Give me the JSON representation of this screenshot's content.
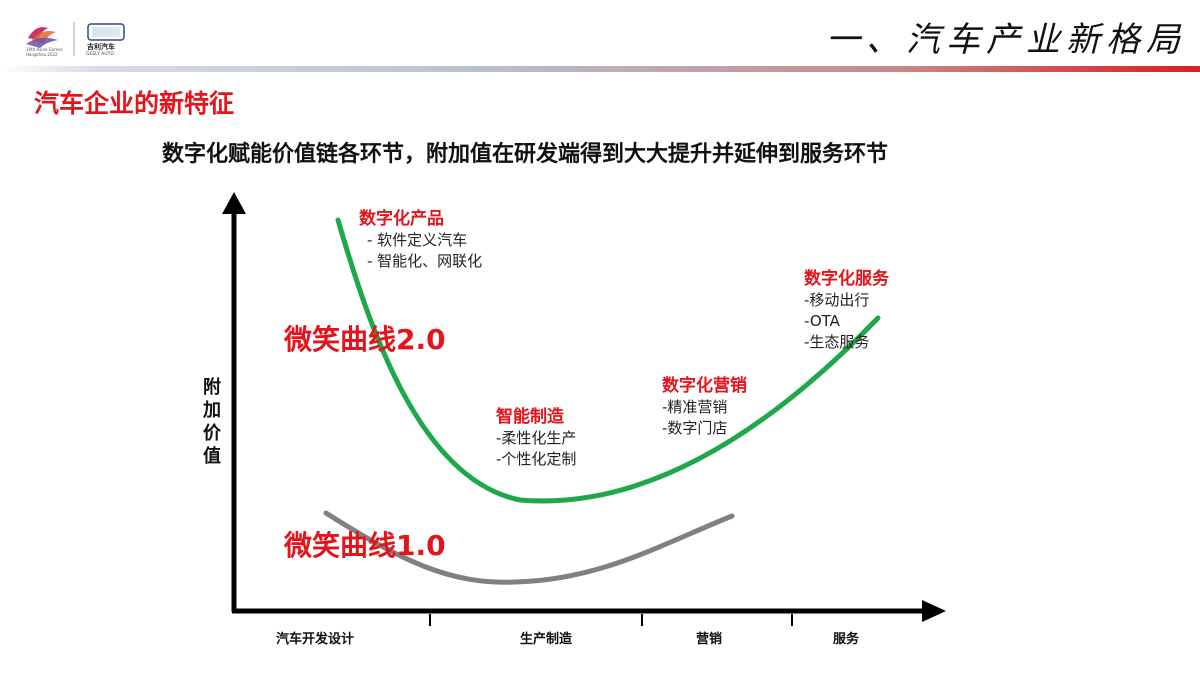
{
  "header": {
    "title": "一、汽车产业新格局",
    "logo": {
      "name": "asian-games-geely-logo",
      "text_lines": [
        "19th Asian Games",
        "Hangzhou 2022",
        "吉利汽车",
        "GEELY AUTO"
      ]
    }
  },
  "section_title": "汽车企业的新特征",
  "subtitle": "数字化赋能价值链各环节，附加值在研发端得到大大提升并延伸到服务环节",
  "axis": {
    "y_label": [
      "附",
      "加",
      "价",
      "值"
    ]
  },
  "x_ticks": [
    "汽车开发设计",
    "生产制造",
    "营销",
    "服务"
  ],
  "curve_labels": {
    "v2": "微笑曲线2.0",
    "v1": "微笑曲线1.0"
  },
  "annotations": {
    "product": {
      "title": "数字化产品",
      "items": [
        "-    软件定义汽车",
        "-    智能化、网联化"
      ]
    },
    "manufacturing": {
      "title": "智能制造",
      "items": [
        "-柔性化生产",
        "-个性化定制"
      ]
    },
    "marketing": {
      "title": "数字化营销",
      "items": [
        "-精准营销",
        "-数字门店"
      ]
    },
    "service": {
      "title": "数字化服务",
      "items": [
        "-移动出行",
        "-OTA",
        "-生态服务"
      ]
    }
  },
  "colors": {
    "accent_red": "#e3141b",
    "curve_v2": "#1ea84a",
    "curve_v1": "#808080",
    "axis": "#000000"
  }
}
